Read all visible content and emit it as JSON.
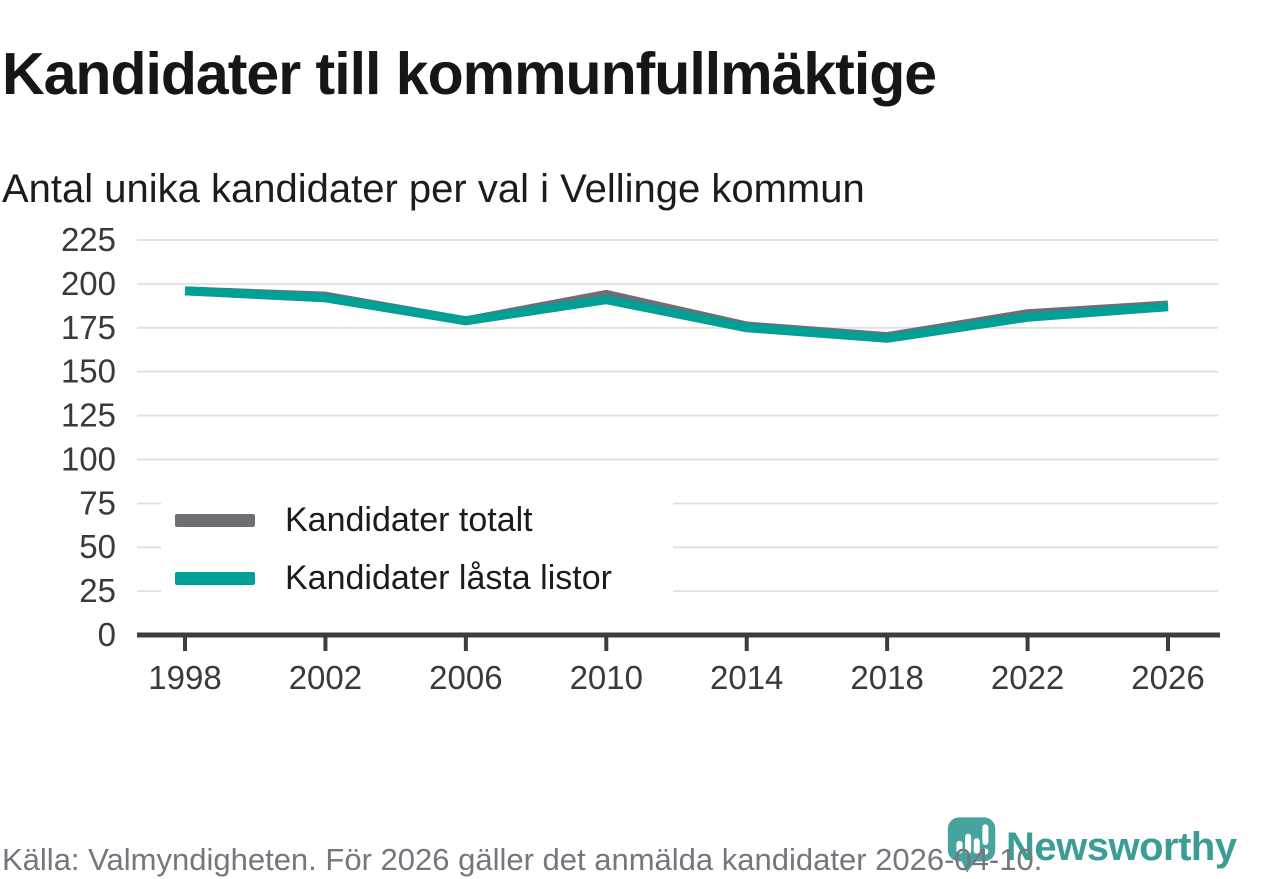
{
  "header": {
    "title": "Kandidater till kommunfullmäktige",
    "subtitle": "Antal unika kandidater per val i Vellinge kommun"
  },
  "chart_data": {
    "type": "line",
    "title": "Kandidater till kommunfullmäktige",
    "subtitle": "Antal unika kandidater per val i Vellinge kommun",
    "x": [
      1998,
      2002,
      2006,
      2010,
      2014,
      2018,
      2022,
      2026
    ],
    "series": [
      {
        "name": "Kandidater totalt",
        "color": "#6e6e73",
        "values": [
          196,
          193,
          179,
          194,
          176,
          170,
          183,
          188
        ]
      },
      {
        "name": "Kandidater låsta listor",
        "color": "#00a096",
        "values": [
          196,
          192,
          179,
          191,
          175,
          169,
          181,
          187
        ]
      }
    ],
    "xlabel": "",
    "ylabel": "",
    "ylim": [
      0,
      225
    ],
    "ytick_step": 25,
    "grid": true,
    "legend_position": "inside-left-middle",
    "gridline_color": "#e2e2e2",
    "axis_color": "#3d3d3d",
    "tick_label_color": "#3a3a3a"
  },
  "footer": {
    "source_text": "Källa: Valmyndigheten. För 2026 gäller det anmälda kandidater 2026-04-10.",
    "brand_name": "Newsworthy",
    "brand_color": "#3c9d96",
    "logo_color": "#46a39d"
  }
}
